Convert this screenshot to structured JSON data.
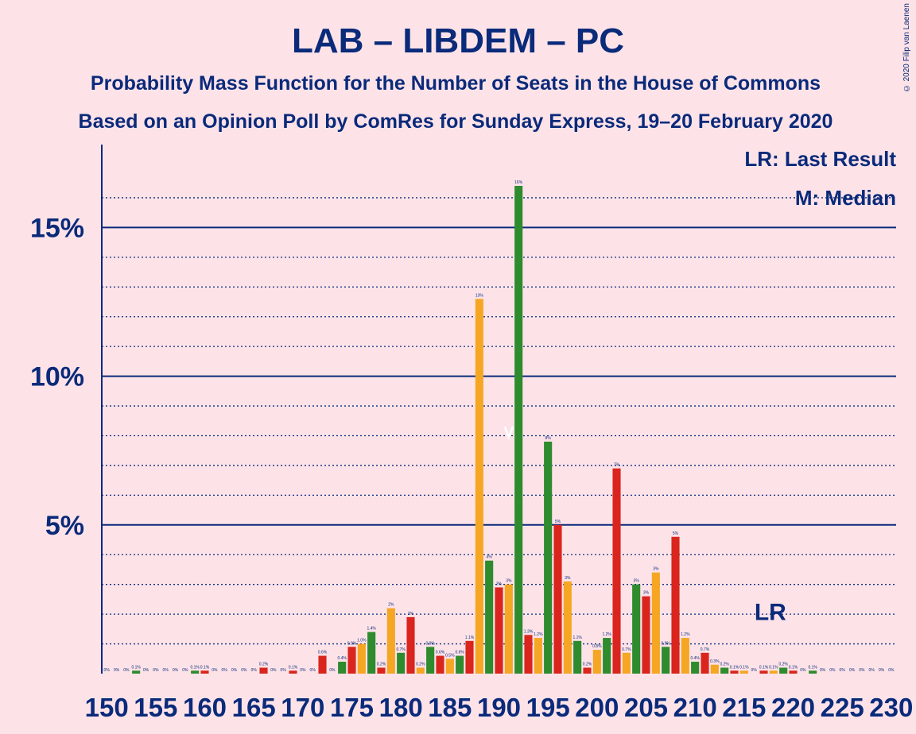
{
  "copyright": "© 2020 Filip van Laenen",
  "chart_data": {
    "type": "bar",
    "title": "LAB – LIBDEM – PC",
    "subtitle": "Probability Mass Function for the Number of Seats in the House of Commons",
    "subtitle2": "Based on an Opinion Poll by ComRes for Sunday Express, 19–20 February 2020",
    "legend": {
      "last_result": "LR: Last Result",
      "median": "M: Median"
    },
    "last_result_label": "LR",
    "last_result_seat": 218,
    "median_seat": 191,
    "xlim": [
      150,
      230
    ],
    "ylim": [
      0,
      17.5
    ],
    "y_ticks": [
      {
        "value": 5,
        "label": "5%"
      },
      {
        "value": 10,
        "label": "10%"
      },
      {
        "value": 15,
        "label": "15%"
      }
    ],
    "x_tick_labels": [
      "150",
      "155",
      "160",
      "165",
      "170",
      "175",
      "180",
      "185",
      "190",
      "195",
      "200",
      "205",
      "210",
      "215",
      "220",
      "225",
      "230"
    ],
    "bar_colors": [
      "#2e8b2e",
      "#d9251d",
      "#f5a623"
    ],
    "x": [
      150,
      151,
      152,
      153,
      154,
      155,
      156,
      157,
      158,
      159,
      160,
      161,
      162,
      163,
      164,
      165,
      166,
      167,
      168,
      169,
      170,
      171,
      172,
      173,
      174,
      175,
      176,
      177,
      178,
      179,
      180,
      181,
      182,
      183,
      184,
      185,
      186,
      187,
      188,
      189,
      190,
      191,
      192,
      193,
      194,
      195,
      196,
      197,
      198,
      199,
      200,
      201,
      202,
      203,
      204,
      205,
      206,
      207,
      208,
      209,
      210,
      211,
      212,
      213,
      214,
      215,
      216,
      217,
      218,
      219,
      220,
      221,
      222,
      223,
      224,
      225,
      226,
      227,
      228,
      229,
      230
    ],
    "values": [
      0,
      0,
      0,
      0.1,
      0,
      0,
      0,
      0,
      0,
      0.1,
      0.1,
      0,
      0,
      0,
      0,
      0,
      0.2,
      0,
      0,
      0.1,
      0,
      0,
      0.6,
      0,
      0.4,
      0.9,
      1.0,
      1.4,
      0.2,
      2.2,
      0.7,
      1.9,
      0.2,
      0.9,
      0.6,
      0.5,
      0.6,
      1.1,
      12.6,
      3.8,
      2.9,
      3.0,
      16.4,
      1.3,
      1.2,
      7.8,
      5.0,
      3.1,
      1.1,
      0.2,
      0.8,
      1.2,
      6.9,
      0.7,
      3.0,
      2.6,
      3.4,
      0.9,
      4.6,
      1.2,
      0.4,
      0.7,
      0.3,
      0.2,
      0.1,
      0.1,
      0,
      0.1,
      0.1,
      0.2,
      0.1,
      0,
      0.1,
      0,
      0,
      0,
      0,
      0,
      0,
      0,
      0
    ],
    "value_labels": [
      "0%",
      "0%",
      "0%",
      "0.1%",
      "0%",
      "0%",
      "0%",
      "0%",
      "0%",
      "0.1%",
      "0.1%",
      "0%",
      "0%",
      "0%",
      "0%",
      "0%",
      "0.2%",
      "0%",
      "0%",
      "0.1%",
      "0%",
      "0%",
      "0.6%",
      "0%",
      "0.4%",
      "0.9%",
      "1.0%",
      "1.4%",
      "0.2%",
      "2%",
      "0.7%",
      "2%",
      "0.2%",
      "0.9%",
      "0.6%",
      "0.5%",
      "0.6%",
      "1.1%",
      "13%",
      "4%",
      "3%",
      "3%",
      "16%",
      "1.3%",
      "1.2%",
      "8%",
      "5%",
      "3%",
      "1.1%",
      "0.2%",
      "0.8%",
      "1.2%",
      "7%",
      "0.7%",
      "3%",
      "3%",
      "3%",
      "0.9%",
      "5%",
      "1.2%",
      "0.4%",
      "0.7%",
      "0.3%",
      "0.2%",
      "0.1%",
      "0.1%",
      "0%",
      "0.1%",
      "0.1%",
      "0.2%",
      "0.1%",
      "0%",
      "0.1%",
      "0%",
      "0%",
      "0%",
      "0%",
      "0%",
      "0%",
      "0%",
      "0%"
    ]
  }
}
